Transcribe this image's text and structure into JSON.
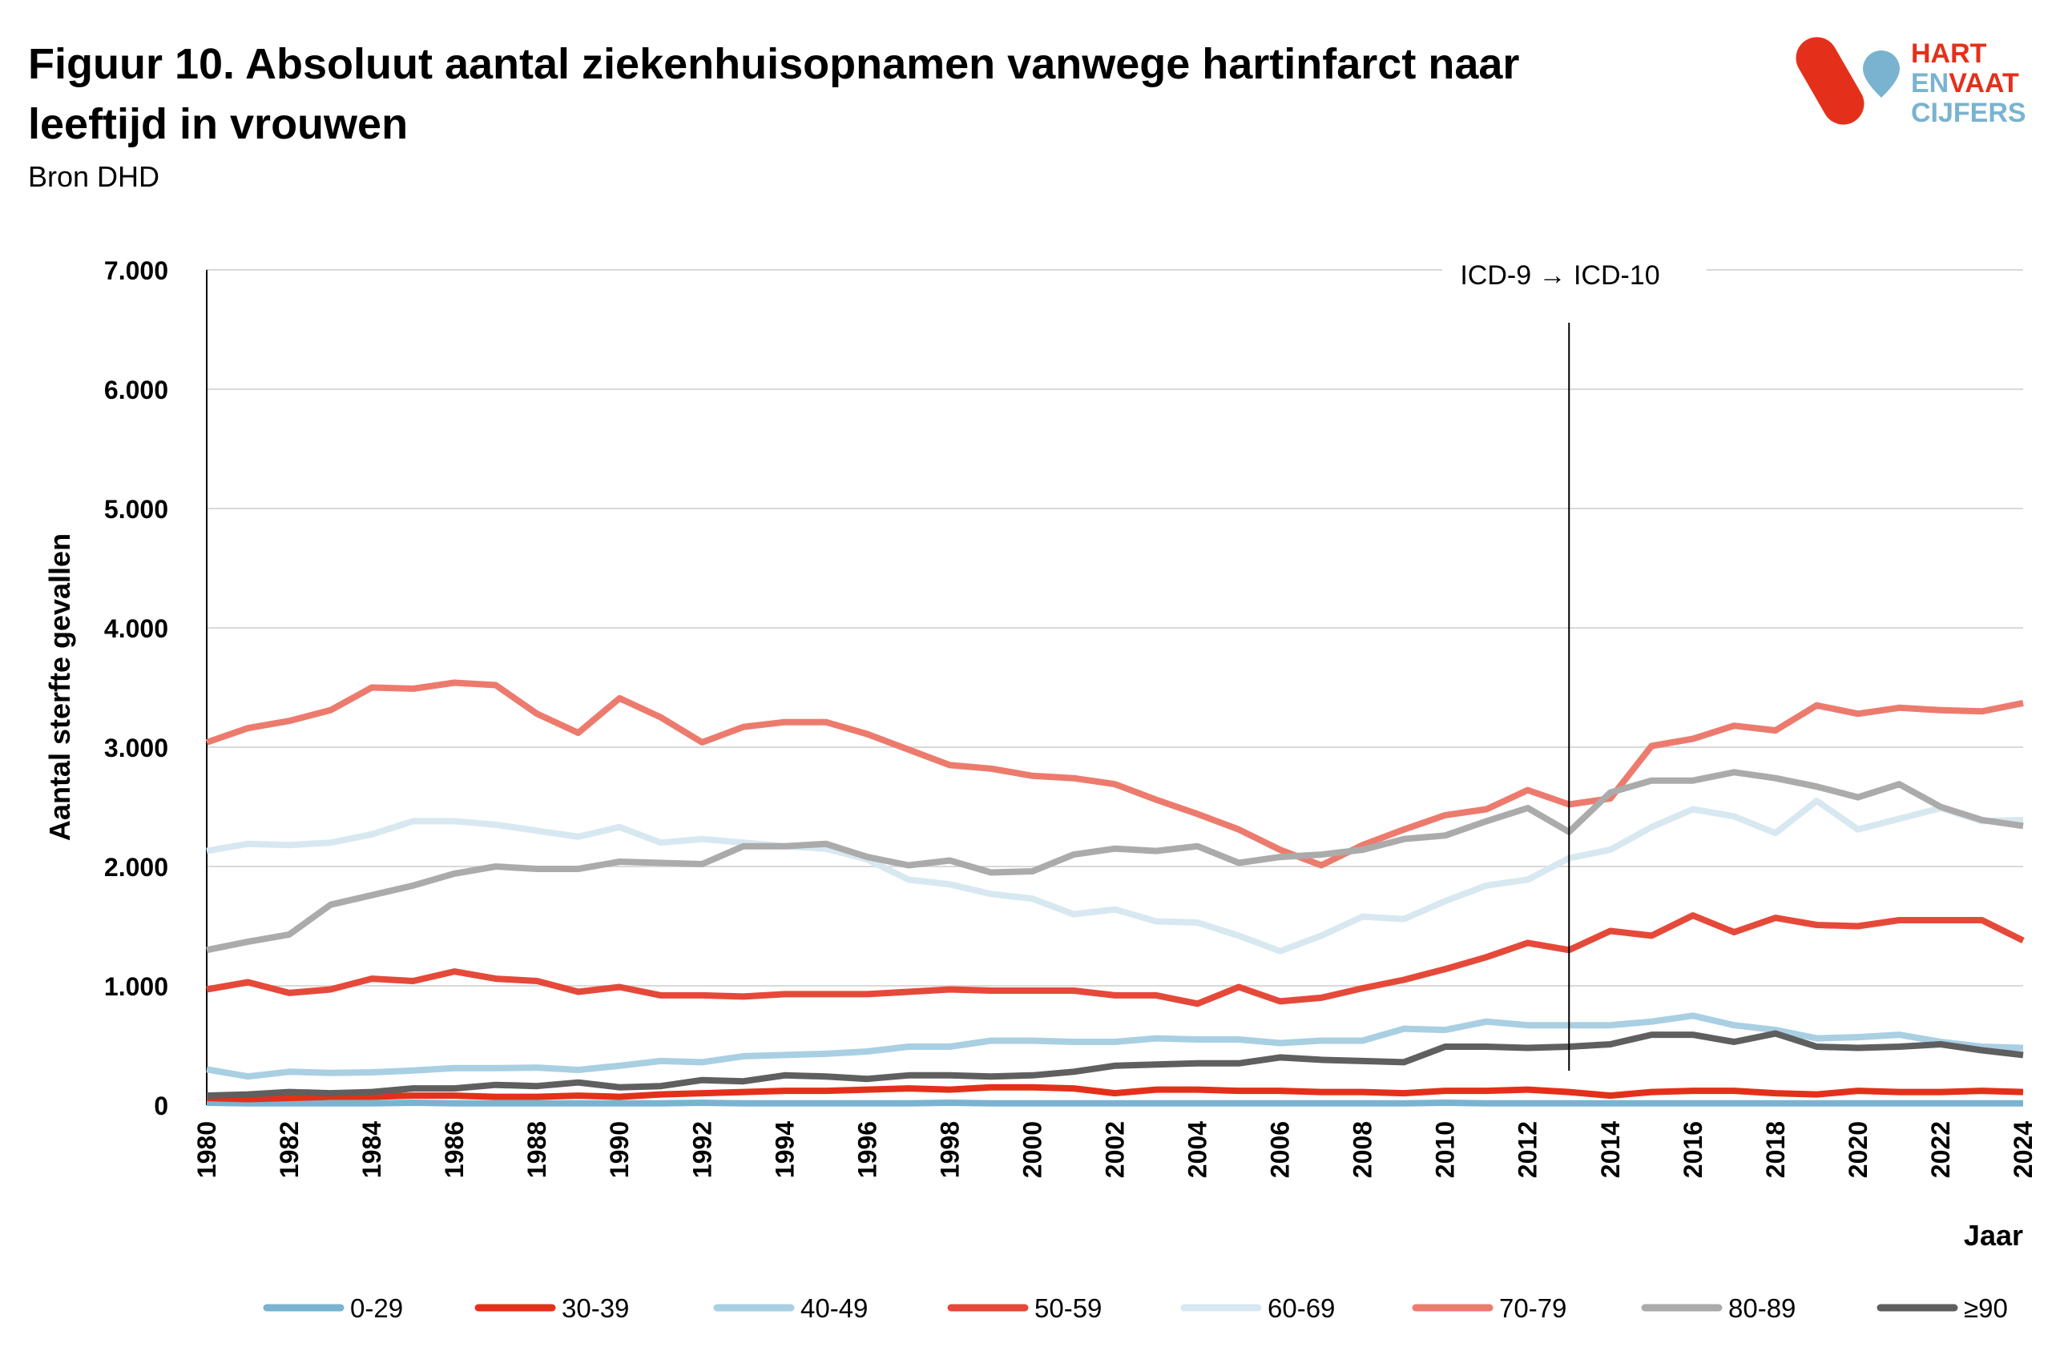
{
  "header": {
    "title_line1": "Figuur 10. Absoluut aantal ziekenhuisopnamen vanwege hartinfarct naar",
    "title_line2": "leeftijd in vrouwen",
    "source": "Bron DHD"
  },
  "logo": {
    "line1": "HART",
    "line2a": "EN",
    "line2b": "VAAT",
    "line3": "CIJFERS",
    "red": "#e4301a",
    "blue": "#7ab3d0"
  },
  "chart_data": {
    "type": "line",
    "title": "Figuur 10. Absoluut aantal ziekenhuisopnamen vanwege hartinfarct naar leeftijd in vrouwen",
    "xlabel": "Jaar",
    "ylabel": "Aantal sterfte gevallen",
    "ylim": [
      0,
      7000
    ],
    "xlim": [
      1980,
      2024
    ],
    "yticks": [
      "0",
      "1.000",
      "2.000",
      "3.000",
      "4.000",
      "5.000",
      "6.000",
      "7.000"
    ],
    "xticks": [
      "1980",
      "1982",
      "1984",
      "1986",
      "1988",
      "1990",
      "1992",
      "1994",
      "1996",
      "1998",
      "2000",
      "2002",
      "2004",
      "2006",
      "2008",
      "2010",
      "2012",
      "2014",
      "2016",
      "2018",
      "2020",
      "2022",
      "2024"
    ],
    "grid": "horizontal",
    "legend": "bottom",
    "annotation": {
      "text": "ICD-9 → ICD-10",
      "year": 2013
    },
    "x": [
      1980,
      1981,
      1982,
      1983,
      1984,
      1985,
      1986,
      1987,
      1988,
      1989,
      1990,
      1991,
      1992,
      1993,
      1994,
      1995,
      1996,
      1997,
      1998,
      1999,
      2000,
      2001,
      2002,
      2003,
      2004,
      2005,
      2006,
      2007,
      2008,
      2009,
      2010,
      2011,
      2012,
      2013,
      2014,
      2015,
      2016,
      2017,
      2018,
      2019,
      2020,
      2021,
      2022,
      2023,
      2024
    ],
    "series": [
      {
        "name": "0-29",
        "color": "#7ab3d0",
        "values": [
          20,
          15,
          15,
          15,
          15,
          20,
          15,
          15,
          15,
          15,
          15,
          15,
          20,
          15,
          15,
          15,
          15,
          15,
          20,
          15,
          15,
          15,
          15,
          15,
          15,
          15,
          15,
          15,
          15,
          15,
          20,
          15,
          15,
          15,
          15,
          15,
          15,
          15,
          15,
          15,
          15,
          15,
          15,
          15,
          15
        ]
      },
      {
        "name": "30-39",
        "color": "#e4301a",
        "values": [
          60,
          50,
          60,
          70,
          70,
          80,
          80,
          70,
          70,
          80,
          70,
          90,
          100,
          110,
          120,
          120,
          130,
          140,
          130,
          150,
          150,
          140,
          100,
          130,
          130,
          120,
          120,
          110,
          110,
          100,
          120,
          120,
          130,
          110,
          80,
          110,
          120,
          120,
          100,
          90,
          120,
          110,
          110,
          120,
          110
        ]
      },
      {
        "name": "40-49",
        "color": "#a9cfe3",
        "values": [
          300,
          240,
          280,
          270,
          275,
          290,
          310,
          310,
          315,
          295,
          330,
          370,
          360,
          410,
          420,
          430,
          450,
          490,
          490,
          540,
          540,
          530,
          530,
          560,
          550,
          550,
          520,
          540,
          540,
          640,
          630,
          700,
          670,
          670,
          670,
          700,
          750,
          670,
          630,
          560,
          570,
          590,
          530,
          490,
          480
        ]
      },
      {
        "name": "50-59",
        "color": "#e5493a",
        "values": [
          970,
          1030,
          940,
          970,
          1060,
          1040,
          1120,
          1060,
          1040,
          950,
          990,
          920,
          920,
          910,
          930,
          930,
          930,
          950,
          970,
          960,
          960,
          960,
          920,
          920,
          850,
          990,
          870,
          900,
          980,
          1050,
          1140,
          1240,
          1360,
          1300,
          1460,
          1420,
          1590,
          1450,
          1570,
          1510,
          1500,
          1550,
          1550,
          1550,
          1380
        ]
      },
      {
        "name": "60-69",
        "color": "#d8e8f1",
        "values": [
          2130,
          2190,
          2180,
          2200,
          2270,
          2380,
          2380,
          2350,
          2300,
          2250,
          2330,
          2200,
          2230,
          2200,
          2170,
          2150,
          2060,
          1890,
          1850,
          1770,
          1730,
          1600,
          1640,
          1540,
          1530,
          1420,
          1290,
          1420,
          1580,
          1560,
          1710,
          1840,
          1890,
          2070,
          2140,
          2330,
          2480,
          2420,
          2280,
          2550,
          2310,
          2400,
          2490,
          2380,
          2390
        ]
      },
      {
        "name": "70-79",
        "color": "#ec7b6e",
        "values": [
          3040,
          3160,
          3220,
          3310,
          3500,
          3490,
          3540,
          3520,
          3280,
          3120,
          3410,
          3250,
          3040,
          3170,
          3210,
          3210,
          3110,
          2980,
          2850,
          2820,
          2760,
          2740,
          2690,
          2560,
          2440,
          2310,
          2140,
          2010,
          2180,
          2310,
          2430,
          2480,
          2640,
          2520,
          2570,
          3010,
          3070,
          3180,
          3140,
          3350,
          3280,
          3330,
          3310,
          3300,
          3370
        ]
      },
      {
        "name": "80-89",
        "color": "#ababab",
        "values": [
          1300,
          1370,
          1430,
          1680,
          1760,
          1840,
          1940,
          2000,
          1980,
          1980,
          2040,
          2030,
          2020,
          2170,
          2170,
          2190,
          2080,
          2010,
          2050,
          1950,
          1960,
          2100,
          2150,
          2130,
          2170,
          2030,
          2080,
          2100,
          2140,
          2230,
          2260,
          2380,
          2490,
          2290,
          2620,
          2720,
          2720,
          2790,
          2740,
          2670,
          2580,
          2690,
          2500,
          2390,
          2340
        ]
      },
      {
        "name": "≥90",
        "color": "#5f5f5f",
        "values": [
          80,
          90,
          110,
          100,
          110,
          140,
          140,
          170,
          160,
          190,
          150,
          160,
          210,
          200,
          250,
          240,
          220,
          250,
          250,
          240,
          250,
          280,
          330,
          340,
          350,
          350,
          400,
          380,
          370,
          360,
          490,
          490,
          480,
          490,
          510,
          590,
          590,
          530,
          600,
          490,
          480,
          490,
          510,
          460,
          420
        ]
      }
    ]
  }
}
